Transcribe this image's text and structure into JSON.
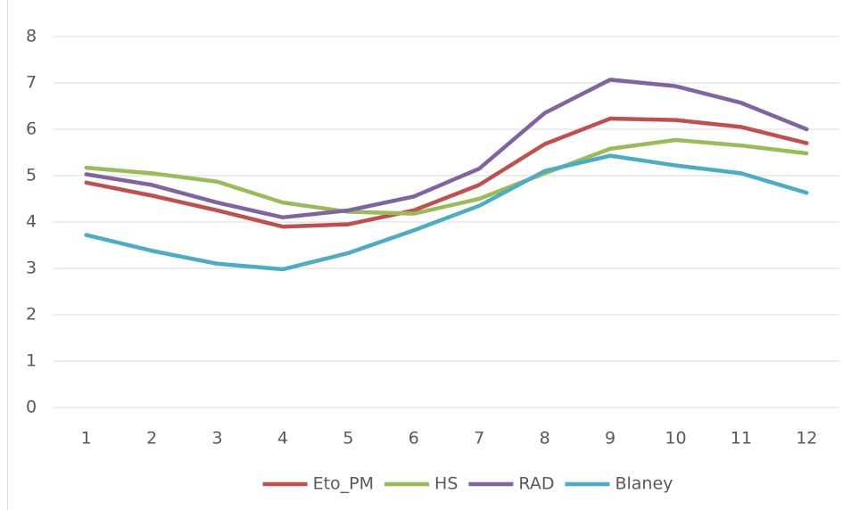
{
  "chart_data": {
    "type": "line",
    "categories": [
      "1",
      "2",
      "3",
      "4",
      "5",
      "6",
      "7",
      "8",
      "9",
      "10",
      "11",
      "12"
    ],
    "series": [
      {
        "name": "Eto_PM",
        "color": "#c0504d",
        "values": [
          4.85,
          4.57,
          4.25,
          3.9,
          3.95,
          4.25,
          4.8,
          5.68,
          6.23,
          6.2,
          6.05,
          5.7
        ]
      },
      {
        "name": "HS",
        "color": "#9bbb59",
        "values": [
          5.17,
          5.05,
          4.87,
          4.42,
          4.22,
          4.18,
          4.5,
          5.05,
          5.58,
          5.77,
          5.65,
          5.48
        ]
      },
      {
        "name": "RAD",
        "color": "#8064a2",
        "values": [
          5.03,
          4.8,
          4.42,
          4.1,
          4.25,
          4.55,
          5.15,
          6.35,
          7.07,
          6.93,
          6.57,
          6.0
        ]
      },
      {
        "name": "Blaney",
        "color": "#4bacc6",
        "values": [
          3.72,
          3.38,
          3.1,
          2.98,
          3.33,
          3.82,
          4.35,
          5.1,
          5.43,
          5.22,
          5.05,
          4.63
        ]
      }
    ],
    "ylim": [
      0,
      8
    ],
    "yticks": [
      0,
      1,
      2,
      3,
      4,
      5,
      6,
      7,
      8
    ],
    "grid": true,
    "legend": "bottom"
  }
}
